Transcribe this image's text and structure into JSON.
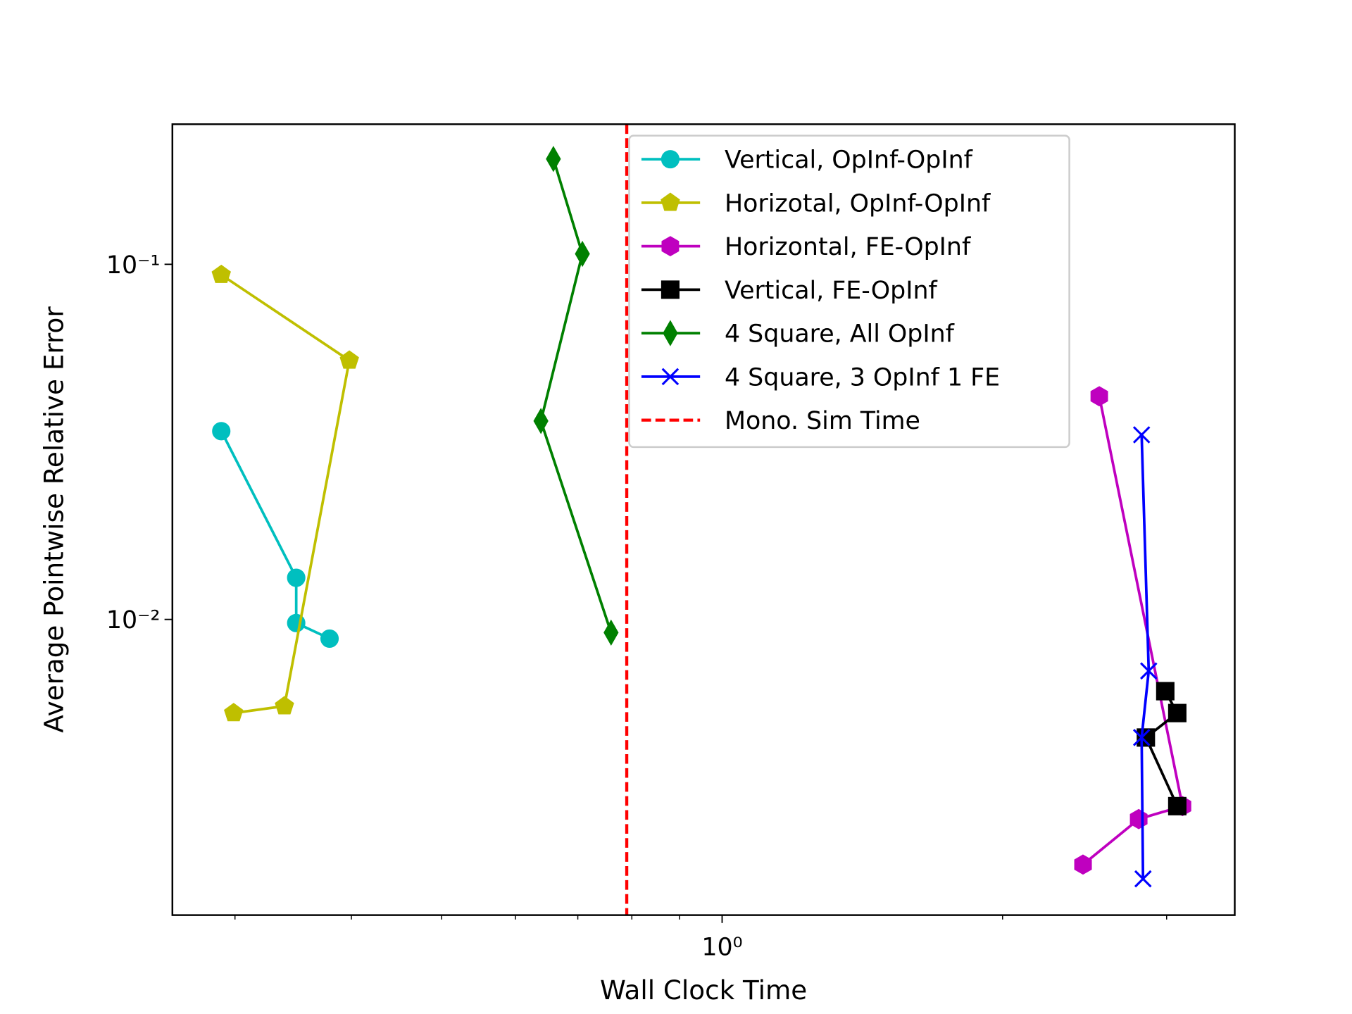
{
  "chart_data": {
    "type": "line",
    "xlabel": "Wall Clock Time",
    "ylabel": "Average Pointwise Relative Error",
    "xscale": "log",
    "yscale": "log",
    "xlim": [
      0.257,
      3.55
    ],
    "ylim": [
      0.00147,
      0.248
    ],
    "xticks": [
      {
        "value": 1,
        "label": "10⁰"
      }
    ],
    "xminorticks": [
      0.3,
      0.4,
      0.5,
      0.6,
      0.7,
      0.8,
      0.9,
      2,
      3
    ],
    "yticks": [
      {
        "value": 0.01,
        "label": "10⁻²"
      },
      {
        "value": 0.1,
        "label": "10⁻¹"
      }
    ],
    "series": [
      {
        "name": "Vertical, OpInf-OpInf",
        "color": "#00bfbf",
        "marker": "circle",
        "x": [
          0.29,
          0.349,
          0.349,
          0.379
        ],
        "values": [
          0.0339,
          0.0131,
          0.00977,
          0.00883
        ]
      },
      {
        "name": "Horizotal, OpInf-OpInf",
        "color": "#bfbf00",
        "marker": "pentagon",
        "x": [
          0.29,
          0.398,
          0.339,
          0.299
        ],
        "values": [
          0.0934,
          0.0536,
          0.0057,
          0.00545
        ]
      },
      {
        "name": "Horizontal, FE-OpInf",
        "color": "#bf00bf",
        "marker": "hexagon",
        "x": [
          2.54,
          3.12,
          2.8,
          2.44
        ],
        "values": [
          0.0425,
          0.00298,
          0.00274,
          0.00204
        ]
      },
      {
        "name": "Vertical, FE-OpInf",
        "color": "#000000",
        "marker": "square",
        "x": [
          2.99,
          3.08,
          2.85,
          3.08
        ],
        "values": [
          0.00628,
          0.00545,
          0.00465,
          0.00298
        ]
      },
      {
        "name": "4 Square, All OpInf",
        "color": "#008000",
        "marker": "thin-diamond",
        "x": [
          0.659,
          0.708,
          0.639,
          0.76
        ],
        "values": [
          0.198,
          0.107,
          0.0362,
          0.00918
        ]
      },
      {
        "name": "4 Square, 3 OpInf 1 FE",
        "color": "#0000ff",
        "marker": "x",
        "x": [
          2.82,
          2.87,
          2.82,
          2.83
        ],
        "values": [
          0.0331,
          0.00716,
          0.00465,
          0.00186
        ]
      }
    ],
    "vline": {
      "name": "Mono. Sim Time",
      "color": "#ff0000",
      "x": 0.79
    }
  }
}
